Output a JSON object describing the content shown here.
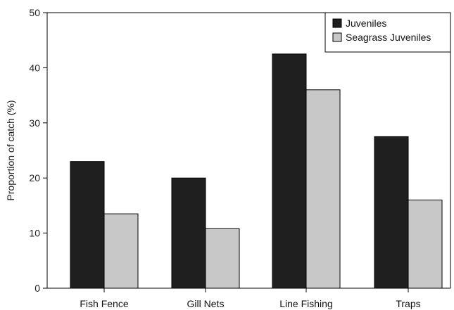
{
  "chart_data": {
    "type": "bar",
    "categories": [
      "Fish Fence",
      "Gill Nets",
      "Line Fishing",
      "Traps"
    ],
    "series": [
      {
        "name": "Juveniles",
        "values": [
          23,
          20,
          42.5,
          27.5
        ],
        "color": "#1f1f1f"
      },
      {
        "name": "Seagrass Juveniles",
        "values": [
          13.5,
          10.8,
          36,
          16
        ],
        "color": "#c8c8c8"
      }
    ],
    "xlabel": "",
    "ylabel": "Proportion of catch (%)",
    "ylim": [
      0,
      50
    ],
    "yticks": [
      0,
      10,
      20,
      30,
      40,
      50
    ],
    "grid": false,
    "legend_position": "top-right"
  }
}
